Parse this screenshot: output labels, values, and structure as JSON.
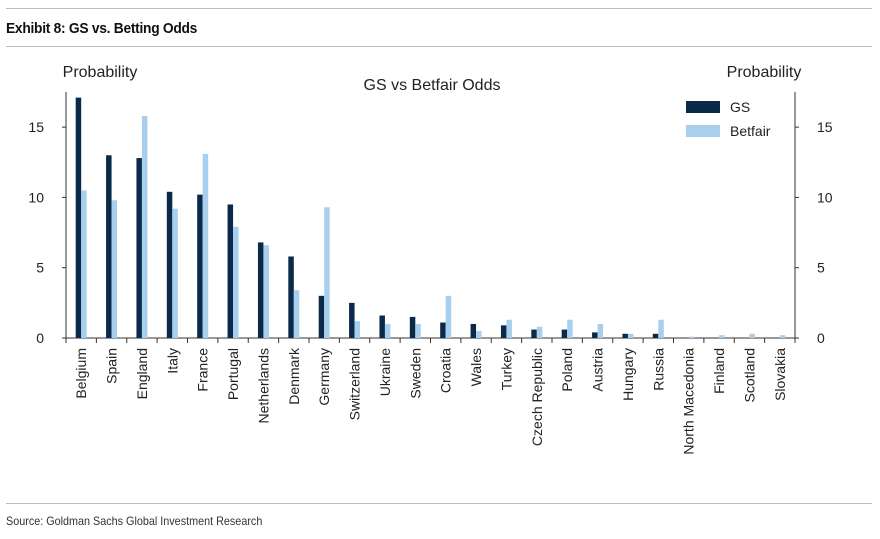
{
  "exhibit_title": "Exhibit 8: GS vs. Betting Odds",
  "source": "Source: Goldman Sachs Global Investment Research",
  "chart_data": {
    "type": "bar",
    "title": "GS vs Betfair Odds",
    "ylabel_left": "Probability",
    "ylabel_right": "Probability",
    "ylim": [
      0,
      17.5
    ],
    "yticks": [
      0,
      5,
      10,
      15
    ],
    "categories": [
      "Belgium",
      "Spain",
      "England",
      "Italy",
      "France",
      "Portugal",
      "Netherlands",
      "Denmark",
      "Germany",
      "Switzerland",
      "Ukraine",
      "Sweden",
      "Croatia",
      "Wales",
      "Turkey",
      "Czech Republic",
      "Poland",
      "Austria",
      "Hungary",
      "Russia",
      "North Macedonia",
      "Finland",
      "Scotland",
      "Slovakia"
    ],
    "series": [
      {
        "name": "GS",
        "color": "#0b2a4a",
        "values": [
          17.1,
          13.0,
          12.8,
          10.4,
          10.2,
          9.5,
          6.8,
          5.8,
          3.0,
          2.5,
          1.6,
          1.5,
          1.1,
          1.0,
          0.9,
          0.6,
          0.6,
          0.4,
          0.3,
          0.3,
          0.0,
          0.0,
          0.0,
          0.0
        ]
      },
      {
        "name": "Betfair",
        "color": "#a9cfee",
        "values": [
          10.5,
          9.8,
          15.8,
          9.2,
          13.1,
          7.9,
          6.6,
          3.4,
          9.3,
          1.2,
          1.0,
          1.0,
          3.0,
          0.5,
          1.3,
          0.8,
          1.3,
          1.0,
          0.3,
          1.3,
          0.1,
          0.2,
          0.3,
          0.2
        ]
      }
    ],
    "legend_position": "top-right"
  }
}
